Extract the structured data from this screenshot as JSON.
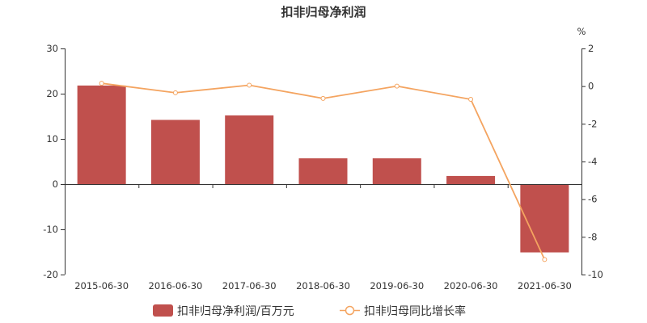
{
  "chart_data": {
    "type": "bar+line",
    "title": "扣非归母净利润",
    "categories": [
      "2015-06-30",
      "2016-06-30",
      "2017-06-30",
      "2018-06-30",
      "2019-06-30",
      "2020-06-30",
      "2021-06-30"
    ],
    "series": [
      {
        "name": "扣非归母净利润/百万元",
        "type": "bar",
        "axis": "left",
        "color": "#c0504d",
        "values": [
          21.8,
          14.2,
          15.2,
          5.7,
          5.7,
          1.8,
          -15.1
        ]
      },
      {
        "name": "扣非归母同比增长率",
        "type": "line",
        "axis": "right",
        "color": "#f4a460",
        "values": [
          0.15,
          -0.35,
          0.05,
          -0.65,
          0.0,
          -0.7,
          -9.2
        ]
      }
    ],
    "y_left": {
      "min": -20,
      "max": 30,
      "ticks": [
        "-20",
        "-10",
        "0",
        "10",
        "20",
        "30"
      ]
    },
    "y_right": {
      "min": -10,
      "max": 2,
      "unit": "%",
      "ticks": [
        "-10",
        "-8",
        "-6",
        "-4",
        "-2",
        "0",
        "2"
      ]
    },
    "grid": false,
    "legend_position": "bottom"
  }
}
